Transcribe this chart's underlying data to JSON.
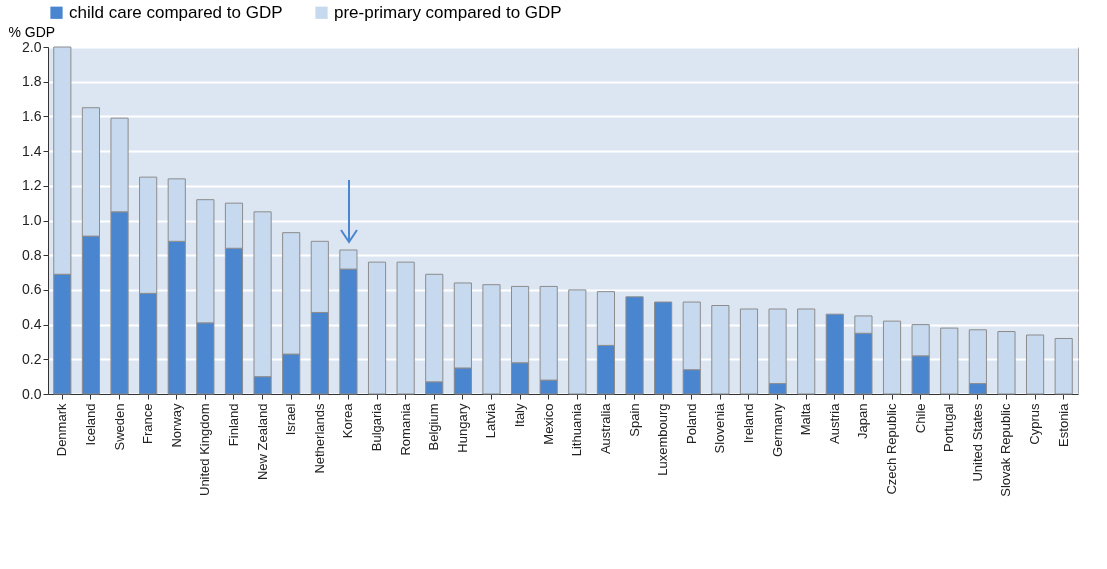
{
  "chart_data": {
    "type": "bar",
    "stacked": true,
    "ylabel": "% GDP",
    "legend": "top",
    "grid": "y",
    "categories": [
      "Denmark",
      "Iceland",
      "Sweden",
      "France",
      "Norway",
      "United Kingdom",
      "Finland",
      "New Zealand",
      "Israel",
      "Netherlands",
      "Korea",
      "Bulgaria",
      "Romania",
      "Belgium",
      "Hungary",
      "Latvia",
      "Italy",
      "Mexico",
      "Lithuania",
      "Australia",
      "Spain",
      "Luxembourg",
      "Poland",
      "Slovenia",
      "Ireland",
      "Germany",
      "Malta",
      "Austria",
      "Japan",
      "Czech Republic",
      "Chile",
      "Portugal",
      "United States",
      "Slovak Republic",
      "Cyprus",
      "Estonia"
    ],
    "series": [
      {
        "name": "child care compared to GDP",
        "color": "#4a86d0",
        "values": [
          0.69,
          0.91,
          1.05,
          0.58,
          0.88,
          0.41,
          0.84,
          0.1,
          0.23,
          0.47,
          0.72,
          0,
          0,
          0.07,
          0.15,
          0,
          0.18,
          0.08,
          0,
          0.28,
          0.56,
          0.53,
          0.14,
          0,
          0,
          0.06,
          0,
          0.46,
          0.35,
          0,
          0.22,
          0,
          0.06,
          0,
          0,
          0
        ]
      },
      {
        "name": "pre-primary compared to GDP",
        "color": "#c6d9ef",
        "values": [
          1.31,
          0.74,
          0.54,
          0.67,
          0.36,
          0.71,
          0.26,
          0.95,
          0.7,
          0.41,
          0.11,
          0.76,
          0.76,
          0.62,
          0.49,
          0.63,
          0.44,
          0.54,
          0.6,
          0.31,
          0,
          0,
          0.39,
          0.51,
          0.49,
          0.43,
          0.49,
          0,
          0.1,
          0.42,
          0.18,
          0.38,
          0.31,
          0.36,
          0.34,
          0.32
        ]
      }
    ],
    "ylim": [
      0,
      2
    ],
    "yticks": [
      {
        "value": 0,
        "label": "0.0"
      },
      0.2,
      0.4,
      0.6,
      0.8,
      {
        "value": 1,
        "label": "1.0"
      },
      1.2,
      1.4,
      1.6,
      1.8,
      {
        "value": 2,
        "label": "2.0"
      }
    ]
  }
}
